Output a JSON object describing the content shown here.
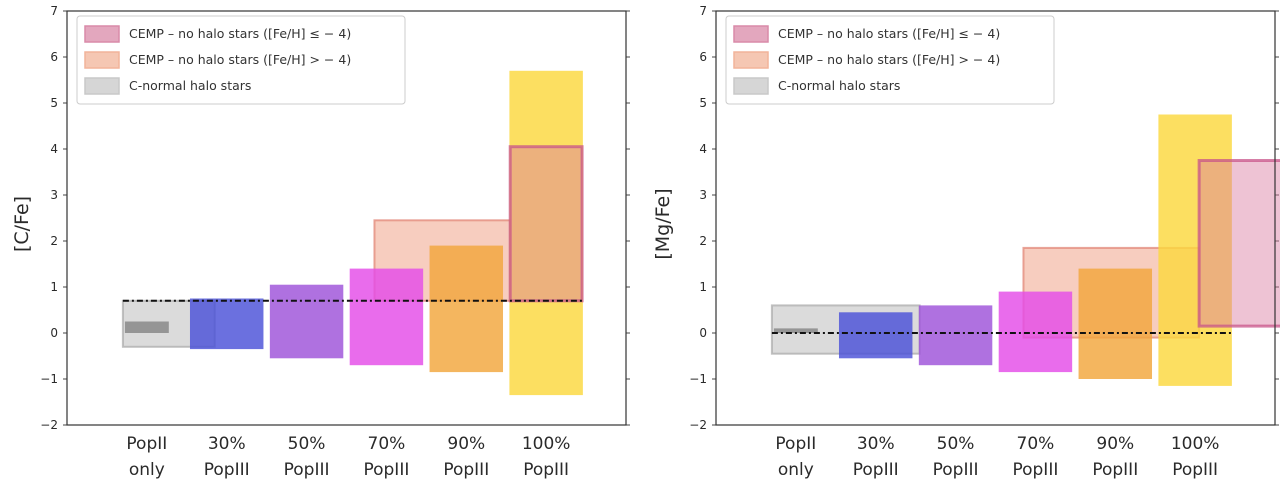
{
  "chart_data": [
    {
      "type": "bar",
      "panel": "left",
      "ylabel": "[C/Fe]",
      "xlabel": "",
      "ylim": [
        -2,
        7
      ],
      "yticks": [
        "−2",
        "−1",
        "0",
        "1",
        "2",
        "3",
        "4",
        "5",
        "6",
        "7"
      ],
      "categories": [
        {
          "line1": "PopII",
          "line2": "only"
        },
        {
          "line1": "30%",
          "line2": "PopIII"
        },
        {
          "line1": "50%",
          "line2": "PopIII"
        },
        {
          "line1": "70%",
          "line2": "PopIII"
        },
        {
          "line1": "90%",
          "line2": "PopIII"
        },
        {
          "line1": "100%",
          "line2": "PopIII"
        }
      ],
      "legend": [
        {
          "label": "CEMP – no halo stars ([Fe/H] ≤ − 4)",
          "color": "#d98aa8"
        },
        {
          "label": "CEMP – no halo stars ([Fe/H] > − 4)",
          "color": "#f2b49a"
        },
        {
          "label": "C-normal halo stars",
          "color": "#c8c8c8"
        }
      ],
      "observations": [
        {
          "name": "C-normal halo stars",
          "x0": -0.3,
          "x1": 0.85,
          "y0": -0.3,
          "y1": 0.7
        },
        {
          "name": "CEMP [Fe/H] > -4",
          "x0": 2.85,
          "x1": 4.55,
          "y0": 0.7,
          "y1": 2.45
        },
        {
          "name": "CEMP [Fe/H] <= -4",
          "x0": 4.55,
          "x1": 5.45,
          "y0": 0.7,
          "y1": 4.05
        }
      ],
      "model_ranges": [
        {
          "category": "PopII only",
          "low": 0.0,
          "high": 0.25
        },
        {
          "category": "30% PopIII",
          "low": -0.35,
          "high": 0.75
        },
        {
          "category": "50% PopIII",
          "low": -0.55,
          "high": 1.05
        },
        {
          "category": "70% PopIII",
          "low": -0.7,
          "high": 1.4
        },
        {
          "category": "90% PopIII",
          "low": -0.85,
          "high": 1.9
        },
        {
          "category": "100% PopIII",
          "low": -1.35,
          "high": 5.7
        }
      ],
      "reference_line": 0.7
    },
    {
      "type": "bar",
      "panel": "right",
      "ylabel": "[Mg/Fe]",
      "xlabel": "",
      "ylim": [
        -2,
        7
      ],
      "yticks": [
        "−2",
        "−1",
        "0",
        "1",
        "2",
        "3",
        "4",
        "5",
        "6",
        "7"
      ],
      "categories": [
        {
          "line1": "PopII",
          "line2": "only"
        },
        {
          "line1": "30%",
          "line2": "PopIII"
        },
        {
          "line1": "50%",
          "line2": "PopIII"
        },
        {
          "line1": "70%",
          "line2": "PopIII"
        },
        {
          "line1": "90%",
          "line2": "PopIII"
        },
        {
          "line1": "100%",
          "line2": "PopIII"
        }
      ],
      "legend": [
        {
          "label": "CEMP – no halo stars ([Fe/H] ≤ − 4)",
          "color": "#d98aa8"
        },
        {
          "label": "CEMP – no halo stars ([Fe/H] > − 4)",
          "color": "#f2b49a"
        },
        {
          "label": "C-normal halo stars",
          "color": "#c8c8c8"
        }
      ],
      "observations": [
        {
          "name": "C-normal halo stars",
          "x0": -0.3,
          "x1": 1.55,
          "y0": -0.45,
          "y1": 0.6
        },
        {
          "name": "CEMP [Fe/H] > -4",
          "x0": 2.85,
          "x1": 5.05,
          "y0": -0.1,
          "y1": 1.85
        },
        {
          "name": "CEMP [Fe/H] <= -4",
          "x0": 5.05,
          "x1": 6.1,
          "y0": 0.15,
          "y1": 3.75
        }
      ],
      "model_ranges": [
        {
          "category": "PopII only",
          "low": 0.0,
          "high": 0.1
        },
        {
          "category": "30% PopIII",
          "low": -0.55,
          "high": 0.45
        },
        {
          "category": "50% PopIII",
          "low": -0.7,
          "high": 0.6
        },
        {
          "category": "70% PopIII",
          "low": -0.85,
          "high": 0.9
        },
        {
          "category": "90% PopIII",
          "low": -1.0,
          "high": 1.4
        },
        {
          "category": "100% PopIII",
          "low": -1.15,
          "high": 4.75
        }
      ],
      "reference_line": 0.0
    }
  ],
  "colors": {
    "model_bars": [
      "#888888",
      "#4a50d8",
      "#9d52d9",
      "#e44ce8",
      "#f1a63c",
      "#fbd83e"
    ],
    "reference_line": "#111111"
  }
}
